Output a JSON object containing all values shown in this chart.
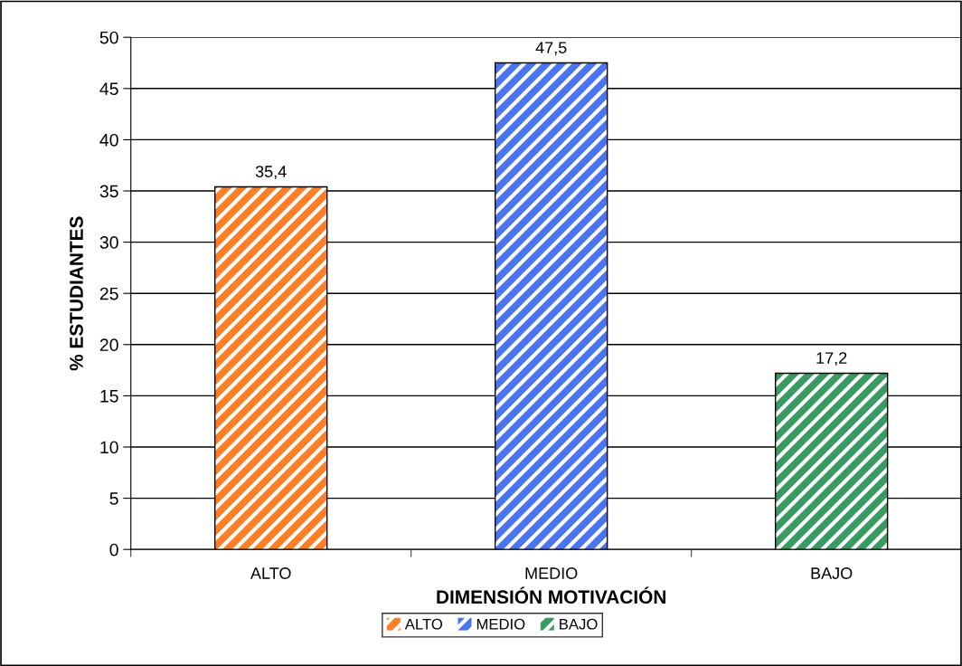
{
  "chart_data": {
    "type": "bar",
    "xlabel": "DIMENSIÓN MOTIVACIÓN",
    "ylabel": "% ESTUDIANTES",
    "categories": [
      "ALTO",
      "MEDIO",
      "BAJO"
    ],
    "series": [
      {
        "name": "ALTO",
        "color": "#ff7f27",
        "values": [
          35.4,
          null,
          null
        ],
        "value_labels": [
          "35,4",
          null,
          null
        ]
      },
      {
        "name": "MEDIO",
        "color": "#4a74f0",
        "values": [
          null,
          47.5,
          null
        ],
        "value_labels": [
          null,
          "47,5",
          null
        ]
      },
      {
        "name": "BAJO",
        "color": "#3a9a64",
        "values": [
          null,
          null,
          17.2
        ],
        "value_labels": [
          null,
          null,
          "17,2"
        ]
      }
    ],
    "ylim": [
      0,
      50
    ],
    "yticks": [
      0,
      5,
      10,
      15,
      20,
      25,
      30,
      35,
      40,
      45,
      50
    ],
    "grid": "y",
    "legend": "bottom"
  }
}
